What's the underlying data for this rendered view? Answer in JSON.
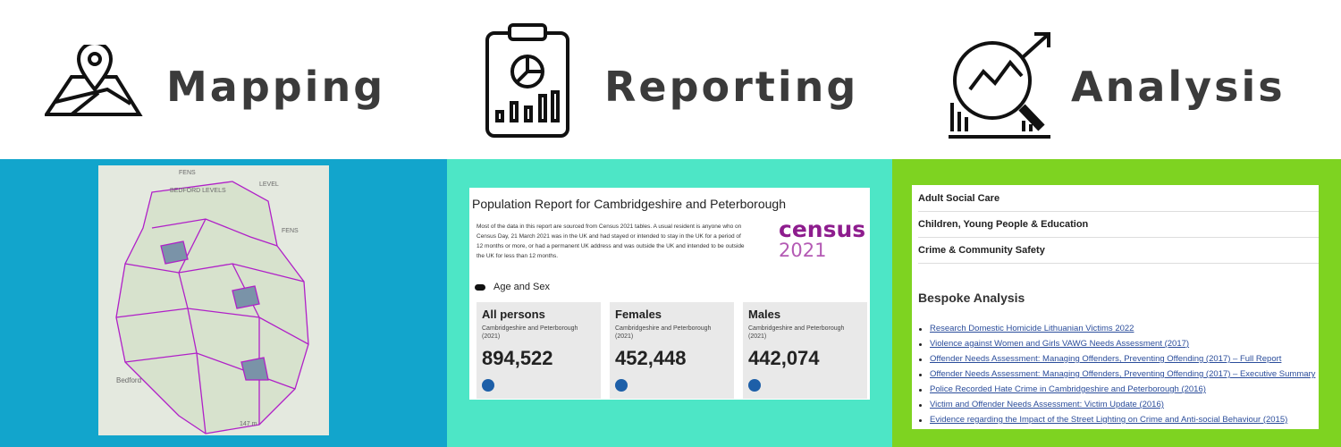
{
  "header": {
    "items": [
      "Mapping",
      "Reporting",
      "Analysis"
    ]
  },
  "map": {
    "labels": [
      "FENS",
      "BEDFORD LEVELS",
      "LEVEL",
      "FENS",
      "Bedford",
      "147 m"
    ]
  },
  "report": {
    "title": "Population Report for Cambridgeshire and Peterborough",
    "intro": "Most of the data in this report are sourced from Census 2021 tables. A usual resident is anyone who on Census Day, 21 March 2021 was in the UK and had stayed or intended to stay in the UK for a period of 12 months or more, or had a permanent UK address and was outside the UK and intended to be outside the UK for less than 12 months.",
    "logo": {
      "word": "census",
      "year": "2021"
    },
    "toggle": "Age and Sex",
    "cards": [
      {
        "title": "All persons",
        "subtitle": "Cambridgeshire and Peterborough (2021)",
        "value": "894,522"
      },
      {
        "title": "Females",
        "subtitle": "Cambridgeshire and Peterborough (2021)",
        "value": "452,448"
      },
      {
        "title": "Males",
        "subtitle": "Cambridgeshire and Peterborough (2021)",
        "value": "442,074"
      }
    ]
  },
  "analysis": {
    "categories": [
      "Adult Social Care",
      "Children, Young People & Education",
      "Crime & Community Safety"
    ],
    "heading": "Bespoke Analysis",
    "links": [
      "Research Domestic Homicide Lithuanian Victims 2022",
      "Violence against Women and Girls VAWG Needs Assessment (2017)",
      "Offender Needs Assessment: Managing Offenders, Preventing Offending (2017) – Full Report",
      "Offender Needs Assessment: Managing Offenders, Preventing Offending (2017) – Executive Summary",
      "Police Recorded Hate Crime in Cambridgeshire and Peterborough (2016)",
      "Victim and Offender Needs Assessment: Victim Update (2016)",
      "Evidence regarding the Impact of the Street Lighting on Crime and Anti-social Behaviour (2015)"
    ]
  }
}
